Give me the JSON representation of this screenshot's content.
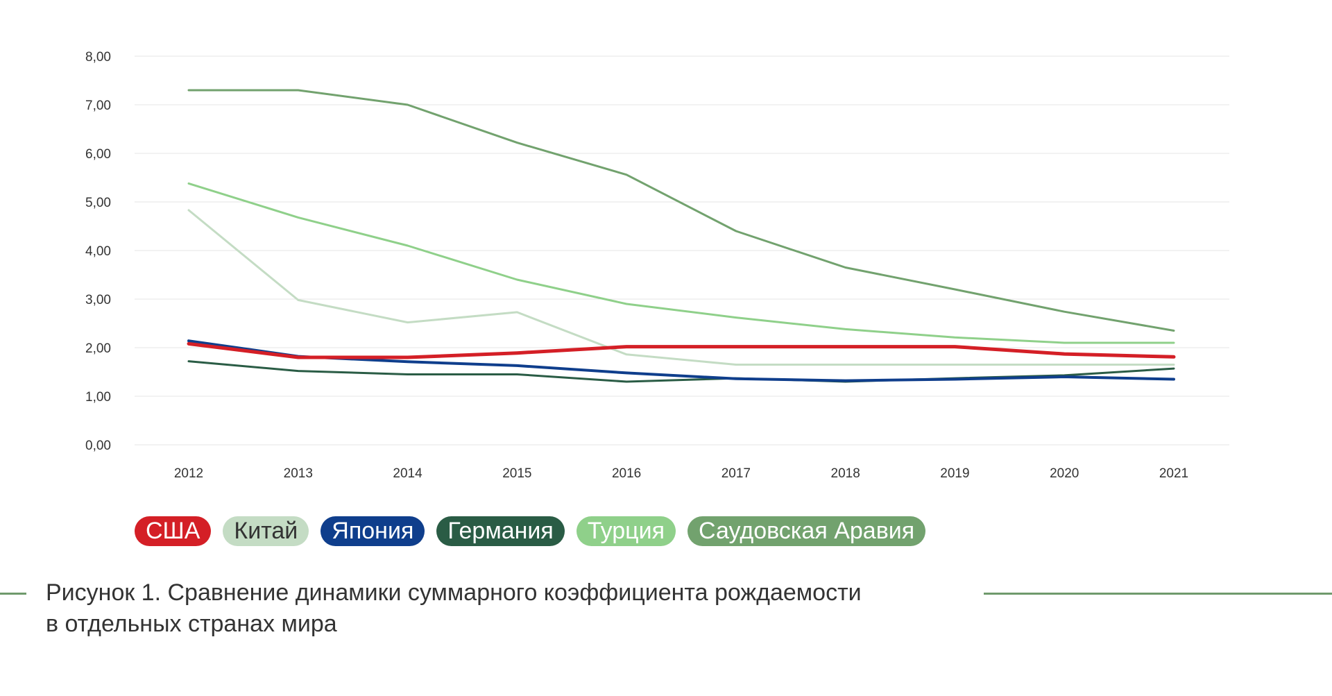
{
  "chart_data": {
    "type": "line",
    "x": [
      "2012",
      "2013",
      "2014",
      "2015",
      "2016",
      "2017",
      "2018",
      "2019",
      "2020",
      "2021"
    ],
    "yticks": [
      "0,00",
      "1,00",
      "2,00",
      "3,00",
      "4,00",
      "5,00",
      "6,00",
      "7,00",
      "8,00"
    ],
    "ylim": [
      0,
      8
    ],
    "grid": true,
    "legend_position": "bottom",
    "series": [
      {
        "name": "Китай",
        "color": "#c4dcc4",
        "stroke_width": 3,
        "values": [
          4.83,
          2.98,
          2.52,
          2.73,
          1.86,
          1.65,
          1.65,
          1.65,
          1.65,
          1.65
        ]
      },
      {
        "name": "Турция",
        "color": "#8fd08a",
        "stroke_width": 3,
        "values": [
          5.38,
          4.68,
          4.1,
          3.4,
          2.9,
          2.62,
          2.38,
          2.21,
          2.1,
          2.1
        ]
      },
      {
        "name": "Саудовская Аравия",
        "color": "#72a26e",
        "stroke_width": 3,
        "values": [
          7.3,
          7.3,
          7.0,
          6.22,
          5.56,
          4.4,
          3.65,
          3.2,
          2.74,
          2.35
        ]
      },
      {
        "name": "Германия",
        "color": "#2a5c45",
        "stroke_width": 3,
        "values": [
          1.72,
          1.52,
          1.45,
          1.45,
          1.3,
          1.37,
          1.3,
          1.37,
          1.43,
          1.57
        ]
      },
      {
        "name": "Япония",
        "color": "#0f3e8c",
        "stroke_width": 4,
        "values": [
          2.14,
          1.82,
          1.71,
          1.63,
          1.48,
          1.36,
          1.32,
          1.35,
          1.4,
          1.35
        ]
      },
      {
        "name": "США",
        "color": "#d41f26",
        "stroke_width": 5,
        "values": [
          2.08,
          1.8,
          1.8,
          1.89,
          2.02,
          2.02,
          2.02,
          2.02,
          1.87,
          1.81
        ]
      }
    ]
  },
  "legend": [
    {
      "label": "США",
      "color": "#d41f26",
      "dark_text": false
    },
    {
      "label": "Китай",
      "color": "#c4dcc4",
      "dark_text": true
    },
    {
      "label": "Япония",
      "color": "#0f3e8c",
      "dark_text": false
    },
    {
      "label": "Германия",
      "color": "#2a5c45",
      "dark_text": false
    },
    {
      "label": "Турция",
      "color": "#8fd08a",
      "dark_text": false
    },
    {
      "label": "Саудовская Аравия",
      "color": "#72a26e",
      "dark_text": false
    }
  ],
  "caption": {
    "line1": "Рисунок 1. Сравнение динамики суммарного коэффициента рождаемости",
    "line2": "в отдельных странах мира",
    "rule_color": "#6f9a6c"
  }
}
